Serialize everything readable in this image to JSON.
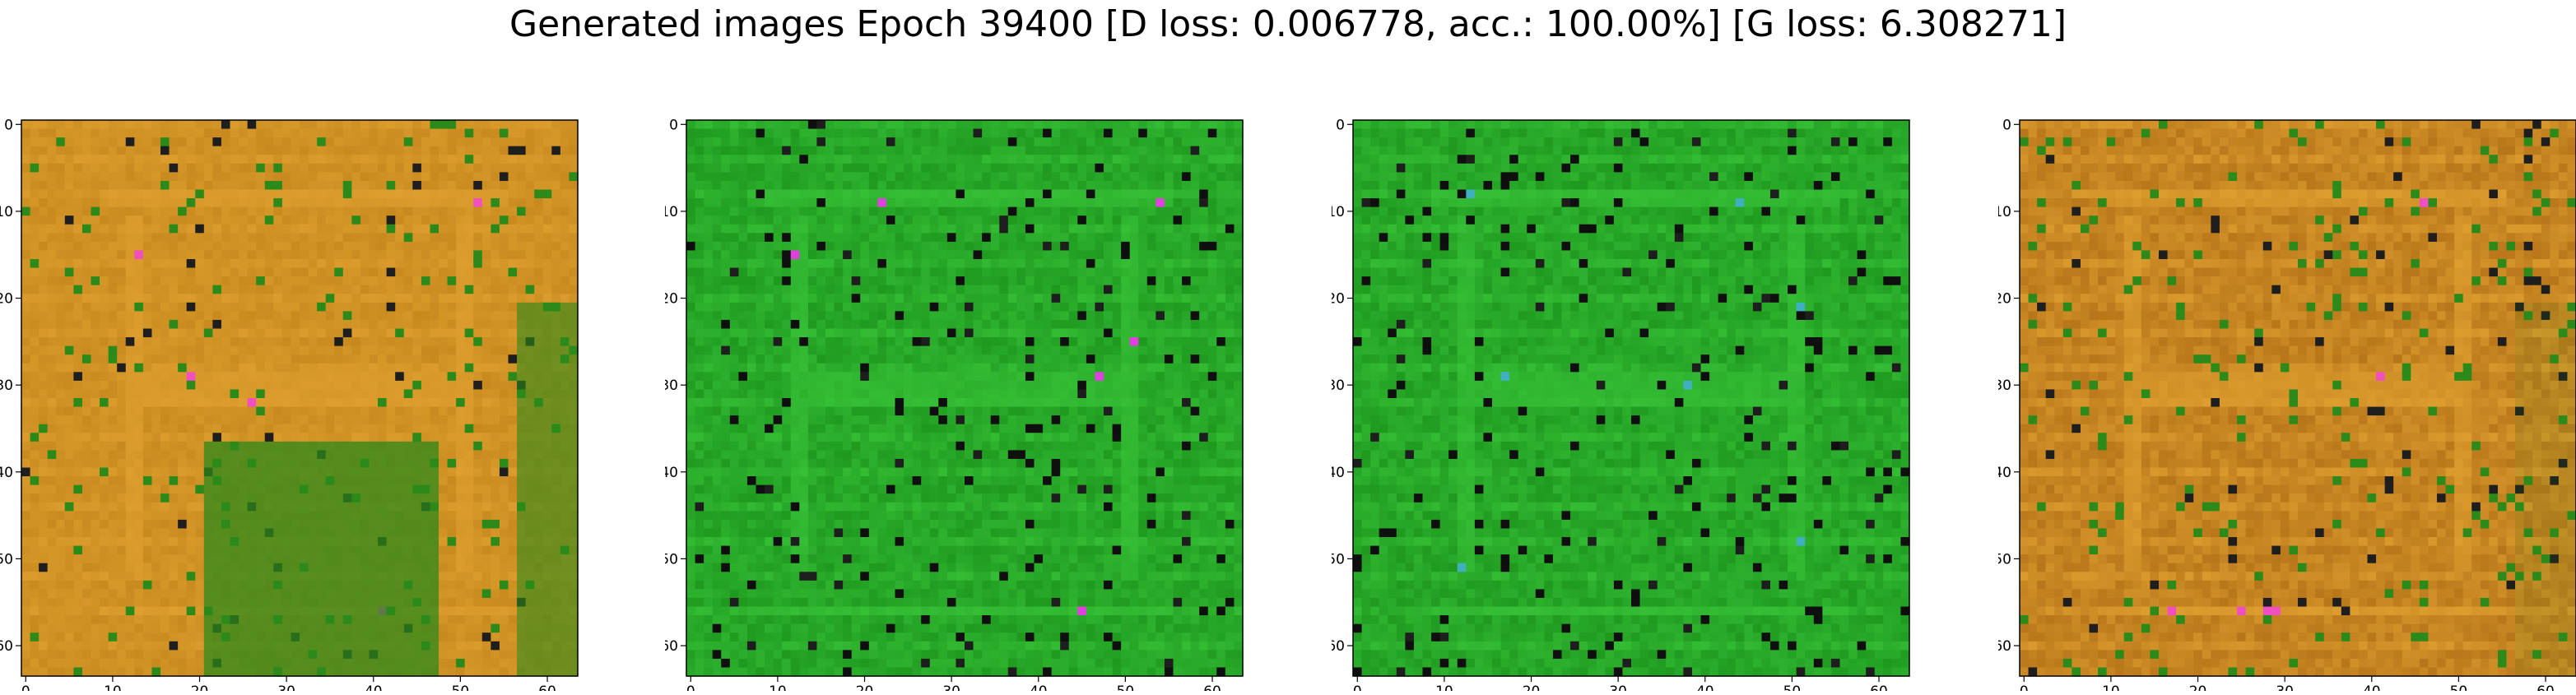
{
  "figure": {
    "title": "Generated images Epoch 39400 [D loss: 0.006778, acc.: 100.00%] [G loss: 6.308271]"
  },
  "panels": [
    {
      "id": "sample-1",
      "palette": "orange",
      "dominant_colors": [
        "#c88a1f",
        "#e0a030",
        "#2c8a1a",
        "#f04fc0"
      ]
    },
    {
      "id": "sample-2",
      "palette": "green",
      "dominant_colors": [
        "#1f9a1f",
        "#38c238",
        "#101010",
        "#e040e0"
      ]
    },
    {
      "id": "sample-3",
      "palette": "green",
      "dominant_colors": [
        "#1f9a1f",
        "#38c238",
        "#101010",
        "#40b0c0"
      ]
    },
    {
      "id": "sample-4",
      "palette": "orange",
      "dominant_colors": [
        "#b8761a",
        "#e0a030",
        "#2c8a1a",
        "#f04fc0"
      ]
    }
  ],
  "axes": {
    "x_ticks": [
      "0",
      "10",
      "20",
      "30",
      "40",
      "50",
      "60"
    ],
    "y_ticks": [
      "0",
      "10",
      "20",
      "30",
      "40",
      "50",
      "60"
    ]
  }
}
